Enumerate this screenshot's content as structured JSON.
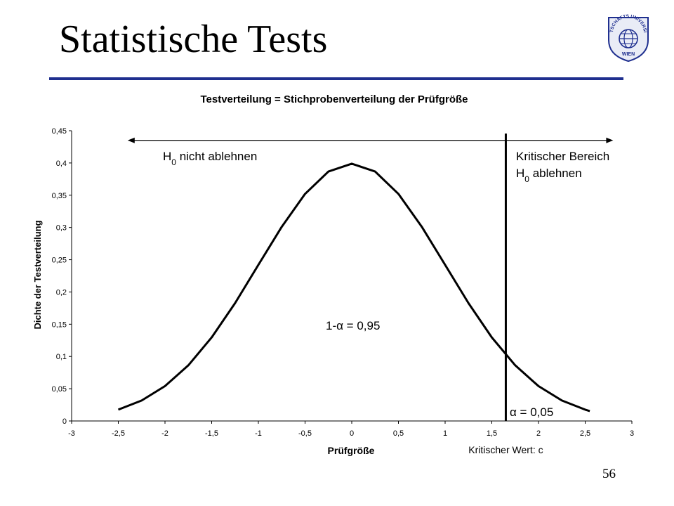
{
  "slide": {
    "title": "Statistische Tests",
    "page_number": "56",
    "title_rule_color": "#1f2f8f",
    "logo": {
      "icon": "university-globe-logo-icon",
      "text_top": "WIRTSCHAFTS UNIVERSITÄT",
      "text_bottom": "WIEN",
      "color": "#1f2f8f"
    }
  },
  "chart_data": {
    "type": "line",
    "title": "Testverteilung = Stichprobenverteilung der Prüfgröße",
    "xlabel": "Prüfgröße",
    "ylabel": "Dichte der Testverteilung",
    "xlim": [
      -3,
      3
    ],
    "ylim": [
      0,
      0.45
    ],
    "x_ticks": [
      -3,
      -2.5,
      -2,
      -1.5,
      -1,
      -0.5,
      0,
      0.5,
      1,
      1.5,
      2,
      2.5,
      3
    ],
    "x_tick_labels": [
      "-3",
      "-2,5",
      "-2",
      "-1,5",
      "-1",
      "-0,5",
      "0",
      "0,5",
      "1",
      "1,5",
      "2",
      "2,5",
      "3"
    ],
    "y_ticks": [
      0,
      0.05,
      0.1,
      0.15,
      0.2,
      0.25,
      0.3,
      0.35,
      0.4,
      0.45
    ],
    "y_tick_labels": [
      "0",
      "0,05",
      "0,1",
      "0,15",
      "0,2",
      "0,25",
      "0,3",
      "0,35",
      "0,4",
      "0,45"
    ],
    "grid": false,
    "series": [
      {
        "x": [
          -2.5,
          -2.25,
          -2,
          -1.75,
          -1.5,
          -1.25,
          -1,
          -0.75,
          -0.5,
          -0.25,
          0,
          0.25,
          0.5,
          0.75,
          1,
          1.25,
          1.5,
          1.75,
          2,
          2.25,
          2.5,
          2.55
        ],
        "y": [
          0.0175,
          0.0317,
          0.054,
          0.0863,
          0.1295,
          0.1826,
          0.242,
          0.3011,
          0.3521,
          0.3867,
          0.3989,
          0.3867,
          0.3521,
          0.3011,
          0.242,
          0.1826,
          0.1295,
          0.0863,
          0.054,
          0.0317,
          0.0175,
          0.0154
        ],
        "color": "#000000"
      }
    ],
    "critical_value": 1.65,
    "critical_label": "Kritischer Wert: c",
    "arrow_range": [
      -2.4,
      2.8
    ],
    "arrow_y": 0.435,
    "annotations": {
      "accept_region": "H0 nicht ablehnen",
      "critical_region_line1": "Kritischer Bereich",
      "critical_region_line2": "H0 ablehnen",
      "probability_accept": "1-α = 0,95",
      "probability_reject": "α = 0,05"
    }
  }
}
